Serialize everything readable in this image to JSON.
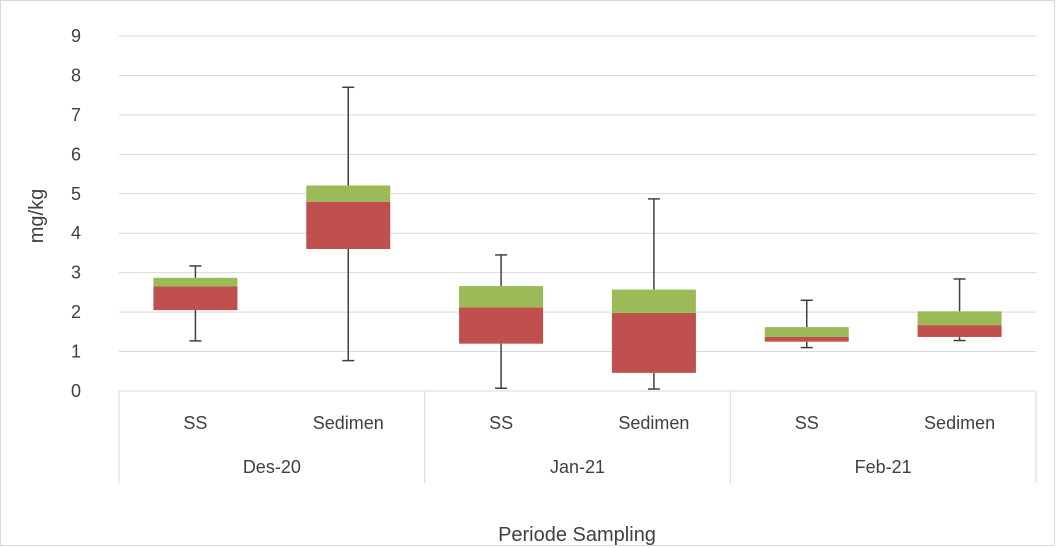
{
  "chart_data": {
    "type": "box",
    "title": "",
    "xlabel": "Periode Sampling",
    "ylabel": "mg/kg",
    "ylim": [
      0,
      9
    ],
    "yticks": [
      0,
      1,
      2,
      3,
      4,
      5,
      6,
      7,
      8,
      9
    ],
    "grid": true,
    "groups": [
      "Des-20",
      "Jan-21",
      "Feb-21"
    ],
    "categories": [
      "SS",
      "Sedimen",
      "SS",
      "Sedimen",
      "SS",
      "Sedimen"
    ],
    "colors": {
      "lower_box": "#c0504d",
      "upper_box": "#9bbb59",
      "whisker": "#404040"
    },
    "boxes": [
      {
        "group": "Des-20",
        "category": "SS",
        "min": 1.27,
        "q1": 2.05,
        "median": 2.65,
        "q3": 2.87,
        "max": 3.17
      },
      {
        "group": "Des-20",
        "category": "Sedimen",
        "min": 0.77,
        "q1": 3.6,
        "median": 4.8,
        "q3": 5.21,
        "max": 7.7
      },
      {
        "group": "Jan-21",
        "category": "SS",
        "min": 0.07,
        "q1": 1.2,
        "median": 2.12,
        "q3": 2.66,
        "max": 3.45
      },
      {
        "group": "Jan-21",
        "category": "Sedimen",
        "min": 0.05,
        "q1": 0.46,
        "median": 1.98,
        "q3": 2.57,
        "max": 4.87
      },
      {
        "group": "Feb-21",
        "category": "SS",
        "min": 1.1,
        "q1": 1.25,
        "median": 1.37,
        "q3": 1.62,
        "max": 2.3
      },
      {
        "group": "Feb-21",
        "category": "Sedimen",
        "min": 1.28,
        "q1": 1.37,
        "median": 1.67,
        "q3": 2.02,
        "max": 2.84
      }
    ]
  }
}
